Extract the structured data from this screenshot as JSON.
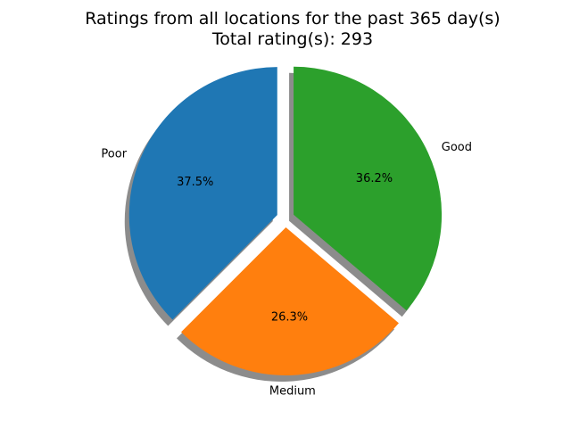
{
  "chart_data": {
    "type": "pie",
    "title": [
      "Ratings from all locations for the past 365 day(s)",
      "Total rating(s): 293"
    ],
    "slices": [
      {
        "label": "Poor",
        "value": 37.5,
        "pct_label": "37.5%",
        "color": "#1f77b4",
        "exploded": true
      },
      {
        "label": "Medium",
        "value": 26.3,
        "pct_label": "26.3%",
        "color": "#ff7f0e",
        "exploded": true
      },
      {
        "label": "Good",
        "value": 36.2,
        "pct_label": "36.2%",
        "color": "#2ca02c",
        "exploded": true
      }
    ],
    "shadow": true,
    "start_angle_deg": 90,
    "direction": "counterclockwise"
  }
}
